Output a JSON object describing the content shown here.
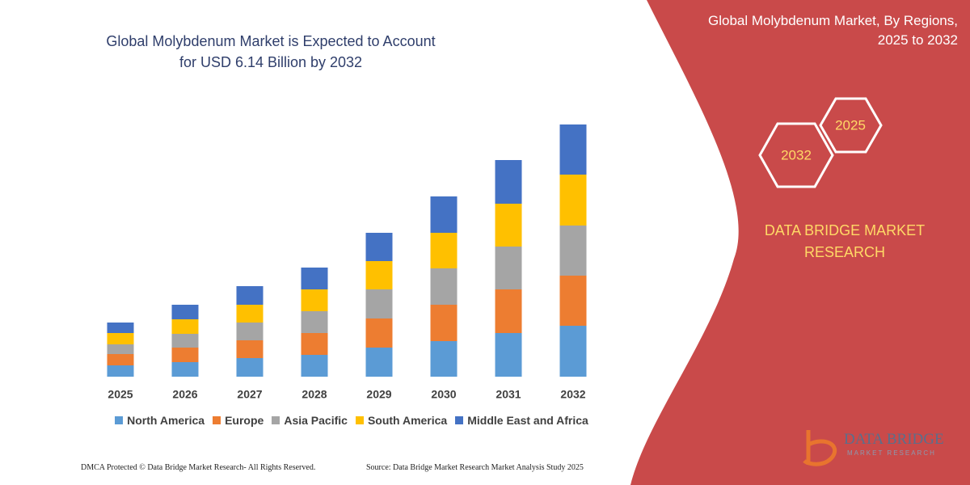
{
  "chart_data": {
    "type": "bar",
    "stacked": true,
    "title": "Global Molybdenum Market is Expected to Account for USD 6.14 Billion by 2032",
    "categories": [
      "2025",
      "2026",
      "2027",
      "2028",
      "2029",
      "2030",
      "2031",
      "2032"
    ],
    "series": [
      {
        "name": "North America",
        "color": "#5b9bd5",
        "values": [
          14,
          18,
          23,
          27,
          36,
          44,
          54,
          63
        ]
      },
      {
        "name": "Europe",
        "color": "#ed7d31",
        "values": [
          14,
          18,
          22,
          27,
          36,
          45,
          54,
          62
        ]
      },
      {
        "name": "Asia Pacific",
        "color": "#a5a5a5",
        "values": [
          12,
          17,
          22,
          27,
          36,
          45,
          53,
          62
        ]
      },
      {
        "name": "South America",
        "color": "#ffc000",
        "values": [
          14,
          18,
          22,
          27,
          35,
          44,
          53,
          63
        ]
      },
      {
        "name": "Middle East and Africa",
        "color": "#4472c4",
        "values": [
          13,
          18,
          23,
          27,
          35,
          45,
          54,
          62
        ]
      }
    ]
  },
  "panel": {
    "title": "Global Molybdenum Market, By Regions, 2025 to 2032",
    "hexagons": [
      "2032",
      "2025"
    ],
    "brand": "DATA BRIDGE MARKET RESEARCH"
  },
  "logo": {
    "name": "DATA BRIDGE",
    "tagline": "MARKET RESEARCH"
  },
  "footer": {
    "left": "DMCA Protected © Data Bridge Market Research-  All Rights Reserved.",
    "right": "Source: Data Bridge Market Research  Market Analysis Study 2025"
  }
}
